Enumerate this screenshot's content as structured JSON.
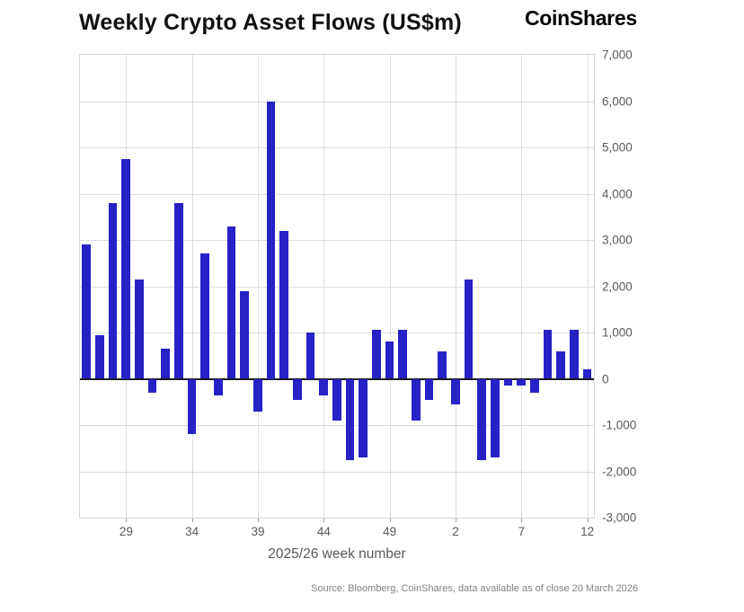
{
  "header": {
    "title": "Weekly Crypto Asset Flows (US$m)",
    "logo": "CoinShares"
  },
  "chart_data": {
    "type": "bar",
    "title": "Weekly Crypto Asset Flows (US$m)",
    "xlabel": "2025/26 week number",
    "ylabel": "",
    "ylim": [
      -3000,
      7000
    ],
    "y_tick_step": 1000,
    "y_tick_labels": [
      "7,000",
      "6,000",
      "5,000",
      "4,000",
      "3,000",
      "2,000",
      "1,000",
      "0",
      "-1,000",
      "-2,000",
      "-3,000"
    ],
    "x_tick_labels": [
      "29",
      "34",
      "39",
      "44",
      "49",
      "2",
      "7",
      "12"
    ],
    "grid": true,
    "legend": "none",
    "bar_color": "#2721c6",
    "categories": [
      "26",
      "27",
      "28",
      "29",
      "30",
      "31",
      "32",
      "33",
      "34",
      "35",
      "36",
      "37",
      "38",
      "39",
      "40",
      "41",
      "42",
      "43",
      "44",
      "45",
      "46",
      "47",
      "48",
      "49",
      "50",
      "51",
      "52",
      "1",
      "2",
      "3",
      "4",
      "5",
      "6",
      "7",
      "8",
      "9",
      "10",
      "11",
      "12"
    ],
    "values": [
      2900,
      950,
      3800,
      4750,
      2150,
      -300,
      650,
      3800,
      -1200,
      2700,
      -350,
      3300,
      1900,
      -700,
      6000,
      3200,
      -450,
      1000,
      -350,
      -900,
      -1750,
      -1700,
      1050,
      800,
      1050,
      -900,
      -450,
      600,
      -550,
      2150,
      -1750,
      -1700,
      -150,
      -150,
      -300,
      1050,
      600,
      1050,
      200
    ]
  },
  "footer": {
    "source": "Source: Bloomberg, CoinShares, data available as of close 20 March 2026"
  }
}
